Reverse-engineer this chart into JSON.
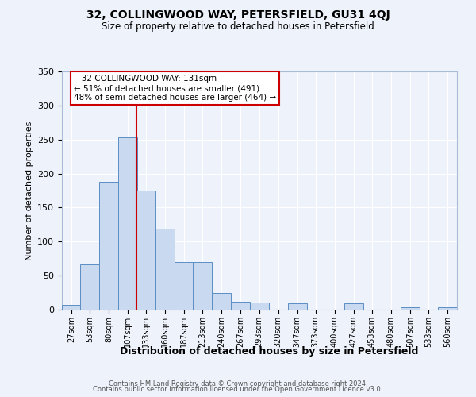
{
  "title": "32, COLLINGWOOD WAY, PETERSFIELD, GU31 4QJ",
  "subtitle": "Size of property relative to detached houses in Petersfield",
  "xlabel": "Distribution of detached houses by size in Petersfield",
  "ylabel": "Number of detached properties",
  "bin_labels": [
    "27sqm",
    "53sqm",
    "80sqm",
    "107sqm",
    "133sqm",
    "160sqm",
    "187sqm",
    "213sqm",
    "240sqm",
    "267sqm",
    "293sqm",
    "320sqm",
    "347sqm",
    "373sqm",
    "400sqm",
    "427sqm",
    "453sqm",
    "480sqm",
    "507sqm",
    "533sqm",
    "560sqm"
  ],
  "bar_heights": [
    7,
    67,
    188,
    253,
    175,
    119,
    70,
    70,
    25,
    12,
    10,
    0,
    9,
    0,
    0,
    9,
    0,
    0,
    4,
    0,
    3
  ],
  "bar_color": "#c8d9f0",
  "bar_edge_color": "#5b8ec4",
  "vline_x": 133,
  "vline_color": "#cc0000",
  "ylim": [
    0,
    350
  ],
  "yticks": [
    0,
    50,
    100,
    150,
    200,
    250,
    300,
    350
  ],
  "annotation_title": "32 COLLINGWOOD WAY: 131sqm",
  "annotation_line1": "← 51% of detached houses are smaller (491)",
  "annotation_line2": "48% of semi-detached houses are larger (464) →",
  "annotation_box_color": "#ffffff",
  "annotation_box_edge_color": "#cc0000",
  "footer_line1": "Contains HM Land Registry data © Crown copyright and database right 2024.",
  "footer_line2": "Contains public sector information licensed under the Open Government Licence v3.0.",
  "background_color": "#eef2fa",
  "grid_color": "#ffffff",
  "bin_width": 27
}
